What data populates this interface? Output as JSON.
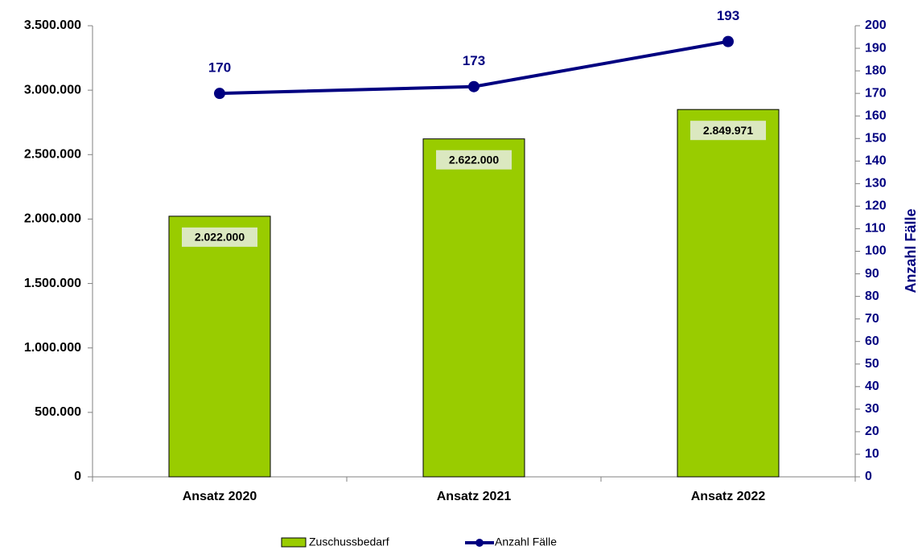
{
  "chart_data": {
    "type": "combo",
    "y2label": "Anzahl Fälle",
    "categories": [
      "Ansatz 2020",
      "Ansatz 2021",
      "Ansatz 2022"
    ],
    "series": [
      {
        "name": "Zuschussbedarf",
        "type": "bar",
        "color": "#99cc00",
        "values": [
          2022000,
          2622000,
          2849971
        ],
        "value_labels": [
          "2.022.000",
          "2.622.000",
          "2.849.971"
        ]
      },
      {
        "name": "Anzahl Fälle",
        "type": "line",
        "axis": "y2",
        "color": "#000080",
        "values": [
          170,
          173,
          193
        ]
      }
    ],
    "ylim": [
      0,
      3500000
    ],
    "yticks": [
      0,
      {
        "value": 500000,
        "label": "500.000"
      },
      {
        "value": 1000000,
        "label": "1.000.000"
      },
      {
        "value": 1500000,
        "label": "1.500.000"
      },
      {
        "value": 2000000,
        "label": "2.000.000"
      },
      {
        "value": 2500000,
        "label": "2.500.000"
      },
      {
        "value": 3000000,
        "label": "3.000.000"
      },
      {
        "value": 3500000,
        "label": "3.500.000"
      }
    ],
    "y2lim": [
      0,
      200
    ],
    "y2ticks": [
      0,
      10,
      20,
      30,
      40,
      50,
      60,
      70,
      80,
      90,
      100,
      110,
      120,
      130,
      140,
      150,
      160,
      170,
      180,
      190,
      200
    ],
    "legend": "bottom"
  }
}
